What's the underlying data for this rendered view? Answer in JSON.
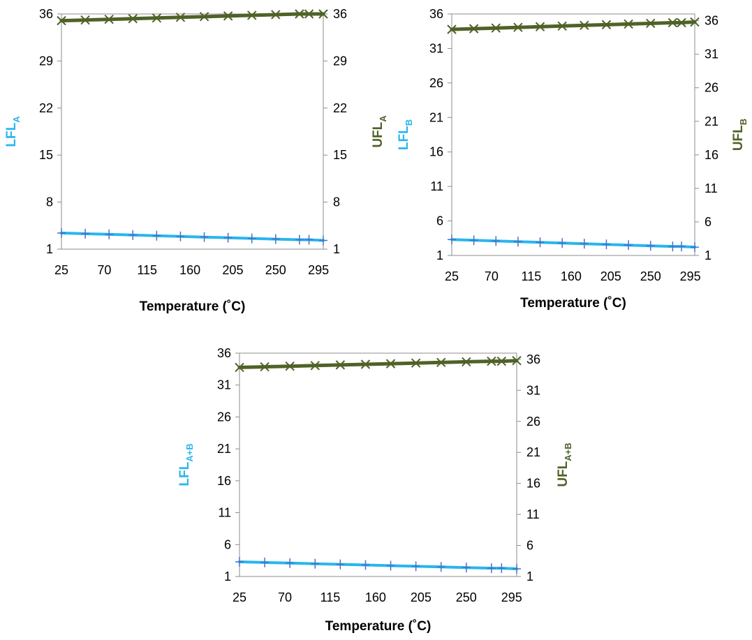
{
  "chart_data": [
    {
      "type": "line",
      "xlabel": "Temperature (˚C)",
      "ylabel_left": {
        "text": "LFL",
        "sub": "A"
      },
      "ylabel_right": {
        "text": "UFL",
        "sub": "A"
      },
      "x_ticks": [
        25,
        70,
        115,
        160,
        205,
        250,
        295
      ],
      "y_ticks_left": [
        1,
        8,
        15,
        22,
        29,
        36
      ],
      "y_ticks_right": [
        1,
        8,
        15,
        22,
        29,
        36
      ],
      "xlim": [
        25,
        300
      ],
      "ylim_left": [
        1,
        36
      ],
      "ylim_right": [
        1,
        36
      ],
      "grid": false,
      "series": [
        {
          "axis": "left",
          "color": "#29B6F0",
          "marker": "plus",
          "x": [
            25,
            50,
            75,
            100,
            125,
            150,
            175,
            200,
            225,
            250,
            275,
            285,
            300
          ],
          "y": [
            3.4,
            3.3,
            3.2,
            3.1,
            3.0,
            2.9,
            2.8,
            2.7,
            2.6,
            2.5,
            2.4,
            2.4,
            2.3
          ]
        },
        {
          "axis": "right",
          "color": "#4F6228",
          "marker": "x",
          "x": [
            25,
            50,
            75,
            100,
            125,
            150,
            175,
            200,
            225,
            250,
            275,
            285,
            300
          ],
          "y": [
            35.0,
            35.1,
            35.2,
            35.3,
            35.4,
            35.5,
            35.6,
            35.7,
            35.8,
            35.9,
            36.0,
            36.0,
            36.0
          ]
        }
      ]
    },
    {
      "type": "line",
      "xlabel": "Temperature (˚C)",
      "ylabel_left": {
        "text": "LFL",
        "sub": "B"
      },
      "ylabel_right": {
        "text": "UFL",
        "sub": "B"
      },
      "x_ticks": [
        25,
        70,
        115,
        160,
        205,
        250,
        295
      ],
      "y_ticks_left": [
        1,
        6,
        11,
        16,
        21,
        26,
        31,
        36
      ],
      "y_ticks_right": [
        1,
        6,
        11,
        16,
        21,
        26,
        31,
        36
      ],
      "xlim": [
        25,
        300
      ],
      "ylim_left": [
        1,
        36
      ],
      "ylim_right": [
        1,
        37
      ],
      "grid": false,
      "series": [
        {
          "axis": "left",
          "color": "#29B6F0",
          "marker": "plus",
          "x": [
            25,
            50,
            75,
            100,
            125,
            150,
            175,
            200,
            225,
            250,
            275,
            285,
            300
          ],
          "y": [
            3.3,
            3.2,
            3.1,
            3.0,
            2.9,
            2.8,
            2.7,
            2.6,
            2.5,
            2.4,
            2.3,
            2.3,
            2.2
          ]
        },
        {
          "axis": "right",
          "color": "#4F6228",
          "marker": "x",
          "x": [
            25,
            50,
            75,
            100,
            125,
            150,
            175,
            200,
            225,
            250,
            275,
            285,
            300
          ],
          "y": [
            34.7,
            34.8,
            34.9,
            35.0,
            35.1,
            35.2,
            35.3,
            35.4,
            35.5,
            35.6,
            35.7,
            35.7,
            35.8
          ]
        }
      ]
    },
    {
      "type": "line",
      "xlabel": "Temperature (˚C)",
      "ylabel_left": {
        "text": "LFL",
        "sub": "A+B"
      },
      "ylabel_right": {
        "text": "UFL",
        "sub": "A+B"
      },
      "x_ticks": [
        25,
        70,
        115,
        160,
        205,
        250,
        295
      ],
      "y_ticks_left": [
        1,
        6,
        11,
        16,
        21,
        26,
        31,
        36
      ],
      "y_ticks_right": [
        1,
        6,
        11,
        16,
        21,
        26,
        31,
        36
      ],
      "xlim": [
        25,
        300
      ],
      "ylim_left": [
        1,
        36
      ],
      "ylim_right": [
        1,
        37
      ],
      "grid": false,
      "series": [
        {
          "axis": "left",
          "color": "#29B6F0",
          "marker": "plus",
          "x": [
            25,
            50,
            75,
            100,
            125,
            150,
            175,
            200,
            225,
            250,
            275,
            285,
            300
          ],
          "y": [
            3.3,
            3.2,
            3.1,
            3.0,
            2.9,
            2.8,
            2.7,
            2.6,
            2.5,
            2.4,
            2.3,
            2.3,
            2.2
          ]
        },
        {
          "axis": "right",
          "color": "#4F6228",
          "marker": "x",
          "x": [
            25,
            50,
            75,
            100,
            125,
            150,
            175,
            200,
            225,
            250,
            275,
            285,
            300
          ],
          "y": [
            34.7,
            34.8,
            34.9,
            35.0,
            35.1,
            35.2,
            35.3,
            35.4,
            35.5,
            35.6,
            35.7,
            35.7,
            35.8
          ]
        }
      ]
    }
  ]
}
